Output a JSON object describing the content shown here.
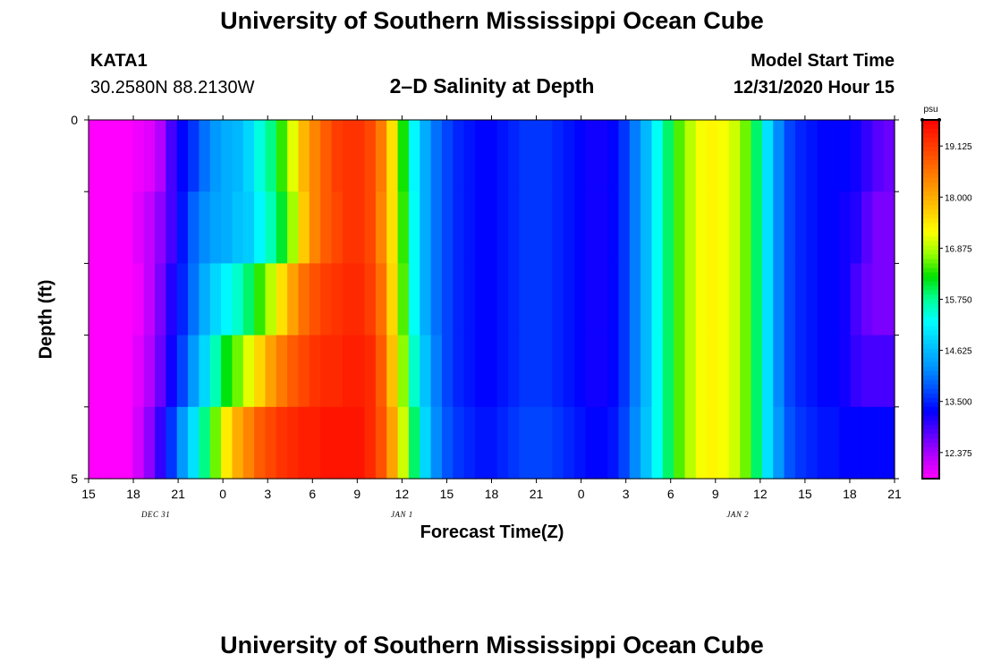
{
  "header": {
    "title": "University of Southern Mississippi Ocean Cube",
    "station": "KATA1",
    "coords": "30.2580N 88.2130W",
    "chart_title": "2–D Salinity at Depth",
    "model_label": "Model Start Time",
    "model_time": "12/31/2020 Hour 15"
  },
  "footer": {
    "title": "University of Southern Mississippi Ocean Cube"
  },
  "chart_data": {
    "type": "heatmap",
    "title": "2–D Salinity at Depth",
    "xlabel": "Forecast Time(Z)",
    "ylabel": "Depth (ft)",
    "x_ticks": [
      "15",
      "18",
      "21",
      "0",
      "3",
      "6",
      "9",
      "12",
      "15",
      "18",
      "21",
      "0",
      "3",
      "6",
      "9",
      "12",
      "15",
      "18",
      "21"
    ],
    "x_date_labels": [
      {
        "label": "DEC 31",
        "tick_index": 1.5
      },
      {
        "label": "JAN 1",
        "tick_index": 7
      },
      {
        "label": "JAN 2",
        "tick_index": 14.5
      }
    ],
    "y_ticks": [
      "0",
      "5"
    ],
    "ylim": [
      0,
      5
    ],
    "hours": 54,
    "depth_rows": 5,
    "colorbar": {
      "unit": "psu",
      "min": 11.8,
      "max": 19.7,
      "tick_labels": [
        "19.125",
        "18.000",
        "16.875",
        "15.750",
        "14.625",
        "13.500",
        "12.375"
      ],
      "colors": [
        "#ff00ff",
        "#b400ff",
        "#5a00ff",
        "#0000ff",
        "#0050ff",
        "#0096ff",
        "#00c8ff",
        "#00ffff",
        "#00ff96",
        "#00e000",
        "#96ff00",
        "#ffff00",
        "#ffc800",
        "#ff9600",
        "#ff6400",
        "#ff3200",
        "#ff0000"
      ]
    },
    "row_salinity_psu": [
      [
        11.8,
        11.8,
        11.8,
        11.8,
        11.9,
        12.0,
        12.3,
        12.9,
        13.3,
        13.6,
        14.0,
        14.3,
        14.5,
        14.6,
        14.9,
        15.4,
        15.8,
        16.4,
        17.1,
        17.9,
        18.4,
        18.8,
        19.1,
        19.2,
        19.2,
        19.0,
        18.5,
        17.5,
        16.3,
        15.2,
        14.5,
        14.0,
        13.7,
        13.5,
        13.4,
        13.3,
        13.3,
        13.4,
        13.5,
        13.6,
        13.6,
        13.6,
        13.5,
        13.4,
        13.3,
        13.2,
        13.2,
        13.3,
        13.6,
        14.1,
        14.6,
        15.3,
        15.9,
        16.5,
        16.9,
        17.2,
        17.3,
        17.2,
        17.0,
        16.6,
        15.9,
        15.0,
        14.2,
        13.7,
        13.5,
        13.4,
        13.3,
        13.3,
        13.3,
        13.2,
        13.0,
        12.8,
        12.7
      ],
      [
        11.8,
        11.8,
        11.8,
        11.8,
        12.0,
        12.2,
        12.5,
        12.9,
        13.4,
        13.9,
        14.2,
        14.4,
        14.5,
        14.7,
        14.8,
        15.2,
        15.6,
        16.1,
        16.8,
        17.7,
        18.4,
        18.8,
        19.0,
        19.2,
        19.2,
        19.0,
        18.4,
        17.5,
        16.4,
        15.3,
        14.5,
        14.0,
        13.7,
        13.5,
        13.4,
        13.3,
        13.3,
        13.4,
        13.5,
        13.6,
        13.6,
        13.6,
        13.5,
        13.4,
        13.3,
        13.2,
        13.2,
        13.3,
        13.6,
        14.1,
        14.6,
        15.3,
        15.9,
        16.5,
        16.9,
        17.2,
        17.3,
        17.2,
        17.0,
        16.6,
        15.9,
        15.0,
        14.2,
        13.7,
        13.5,
        13.4,
        13.3,
        13.3,
        13.2,
        13.1,
        12.8,
        12.6,
        12.6
      ],
      [
        11.8,
        11.8,
        11.8,
        11.8,
        11.9,
        12.2,
        12.6,
        13.1,
        13.5,
        14.0,
        14.5,
        14.9,
        15.2,
        15.5,
        15.9,
        16.4,
        16.9,
        17.5,
        18.1,
        18.6,
        18.9,
        19.1,
        19.2,
        19.3,
        19.3,
        19.1,
        18.6,
        17.6,
        16.5,
        15.3,
        14.5,
        14.0,
        13.7,
        13.5,
        13.4,
        13.3,
        13.3,
        13.4,
        13.5,
        13.6,
        13.6,
        13.6,
        13.5,
        13.4,
        13.3,
        13.2,
        13.2,
        13.3,
        13.6,
        14.1,
        14.6,
        15.3,
        15.9,
        16.5,
        16.9,
        17.2,
        17.3,
        17.2,
        17.0,
        16.6,
        15.9,
        15.0,
        14.2,
        13.7,
        13.5,
        13.4,
        13.3,
        13.3,
        13.2,
        12.9,
        12.7,
        12.6,
        12.6
      ],
      [
        11.8,
        11.8,
        11.8,
        11.8,
        12.0,
        12.3,
        12.7,
        13.2,
        13.7,
        14.3,
        14.9,
        15.6,
        16.2,
        16.6,
        17.1,
        17.6,
        18.1,
        18.5,
        18.8,
        19.0,
        19.2,
        19.3,
        19.3,
        19.4,
        19.4,
        19.3,
        18.8,
        17.8,
        16.7,
        15.5,
        14.7,
        14.1,
        13.7,
        13.5,
        13.4,
        13.3,
        13.3,
        13.4,
        13.5,
        13.6,
        13.6,
        13.6,
        13.5,
        13.4,
        13.3,
        13.2,
        13.2,
        13.3,
        13.6,
        14.1,
        14.6,
        15.3,
        15.9,
        16.5,
        16.9,
        17.2,
        17.3,
        17.2,
        17.0,
        16.6,
        15.9,
        15.0,
        14.2,
        13.7,
        13.5,
        13.4,
        13.3,
        13.3,
        13.2,
        13.0,
        12.9,
        12.9,
        12.9
      ],
      [
        11.8,
        11.8,
        11.8,
        11.8,
        12.1,
        12.5,
        13.0,
        13.6,
        14.3,
        15.0,
        15.8,
        16.6,
        17.4,
        18.0,
        18.4,
        18.8,
        19.0,
        19.2,
        19.3,
        19.4,
        19.4,
        19.5,
        19.5,
        19.5,
        19.5,
        19.3,
        18.9,
        18.1,
        17.0,
        15.9,
        14.9,
        14.2,
        13.8,
        13.6,
        13.5,
        13.4,
        13.4,
        13.5,
        13.6,
        13.7,
        13.7,
        13.7,
        13.6,
        13.5,
        13.4,
        13.3,
        13.3,
        13.4,
        13.7,
        14.2,
        14.7,
        15.3,
        15.9,
        16.5,
        16.9,
        17.2,
        17.3,
        17.2,
        17.0,
        16.6,
        15.9,
        15.0,
        14.3,
        13.8,
        13.6,
        13.5,
        13.4,
        13.4,
        13.3,
        13.3,
        13.3,
        13.3,
        13.3
      ]
    ]
  }
}
